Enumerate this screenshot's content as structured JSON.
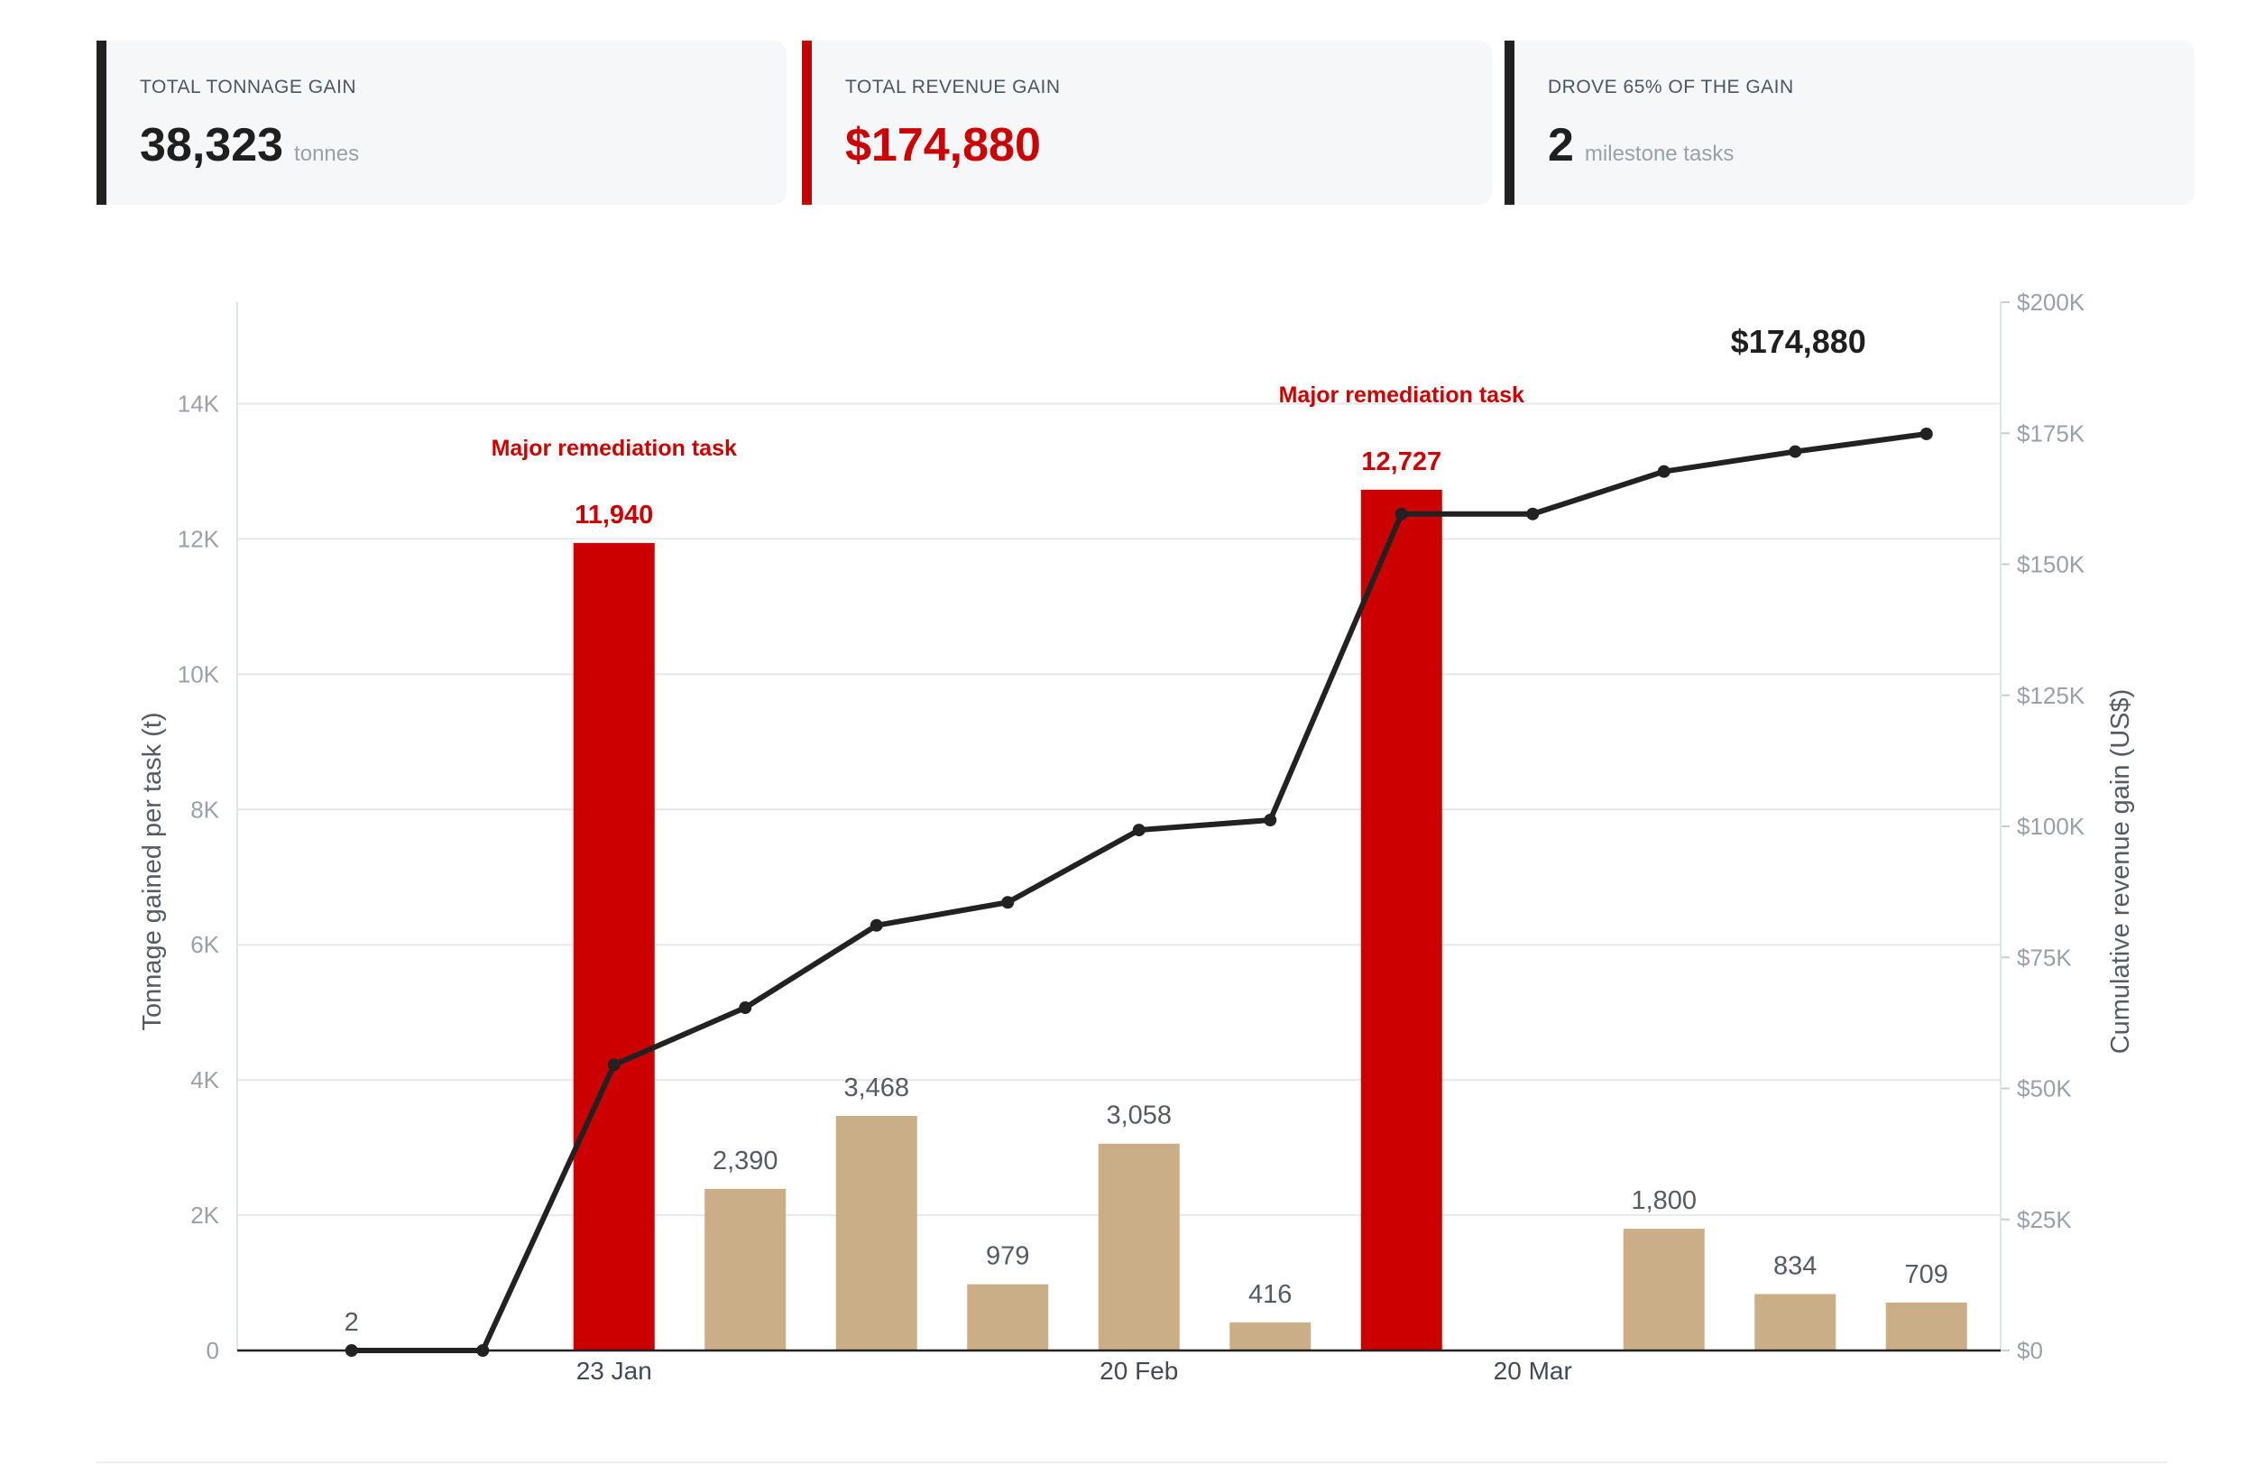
{
  "kpis": [
    {
      "label": "TOTAL TONNAGE GAIN",
      "value": "38,323",
      "unit": "tonnes",
      "accent": "#222222"
    },
    {
      "label": "TOTAL REVENUE GAIN",
      "value": "$174,880",
      "unit": "",
      "accent": "#cc0000"
    },
    {
      "label": "DROVE 65% OF THE GAIN",
      "value": "2",
      "unit": "milestone tasks",
      "accent": "#222222"
    }
  ],
  "chart_data": {
    "type": "bar",
    "ylabel": "Tonnage gained per task (t)",
    "y2label": "Cumulative revenue gain (US$)",
    "ylim": [
      0,
      15500
    ],
    "y_ticks": [
      0,
      2000,
      4000,
      6000,
      8000,
      10000,
      12000,
      14000
    ],
    "y_tick_labels": [
      "0",
      "2K",
      "4K",
      "6K",
      "8K",
      "10K",
      "12K",
      "14K"
    ],
    "y2lim": [
      0,
      200000
    ],
    "y2_ticks": [
      0,
      25000,
      50000,
      75000,
      100000,
      125000,
      150000,
      175000,
      200000
    ],
    "y2_tick_labels": [
      "$0",
      "$25K",
      "$50K",
      "$75K",
      "$100K",
      "$125K",
      "$150K",
      "$175K",
      "$200K"
    ],
    "x_tick_labels": [
      {
        "label": "23 Jan",
        "index": 2
      },
      {
        "label": "20 Feb",
        "index": 6
      },
      {
        "label": "20 Mar",
        "index": 9
      }
    ],
    "grid": "horizontal",
    "bar_colors": {
      "major": "#cc0000",
      "normal": "#c9ae87"
    },
    "line_color": "#222222",
    "tasks": [
      {
        "tonnage": 2,
        "label": "2",
        "major": false,
        "cumulative_revenue": 0
      },
      {
        "tonnage": 0,
        "label": "",
        "major": false,
        "cumulative_revenue": 0
      },
      {
        "tonnage": 11940,
        "label": "11,940",
        "major": true,
        "cumulative_revenue": 54500
      },
      {
        "tonnage": 2390,
        "label": "2,390",
        "major": false,
        "cumulative_revenue": 65400
      },
      {
        "tonnage": 3468,
        "label": "3,468",
        "major": false,
        "cumulative_revenue": 81100
      },
      {
        "tonnage": 979,
        "label": "979",
        "major": false,
        "cumulative_revenue": 85500
      },
      {
        "tonnage": 3058,
        "label": "3,058",
        "major": false,
        "cumulative_revenue": 99300
      },
      {
        "tonnage": 416,
        "label": "416",
        "major": false,
        "cumulative_revenue": 101200
      },
      {
        "tonnage": 12727,
        "label": "12,727",
        "major": true,
        "cumulative_revenue": 159600
      },
      {
        "tonnage": 0,
        "label": "",
        "major": false,
        "cumulative_revenue": 159600
      },
      {
        "tonnage": 1800,
        "label": "1,800",
        "major": false,
        "cumulative_revenue": 167700
      },
      {
        "tonnage": 834,
        "label": "834",
        "major": false,
        "cumulative_revenue": 171500
      },
      {
        "tonnage": 709,
        "label": "709",
        "major": false,
        "cumulative_revenue": 174880
      }
    ],
    "annotations": [
      {
        "text": "Major remediation task",
        "task_index": 2
      },
      {
        "text": "Major remediation task",
        "task_index": 8
      }
    ],
    "end_label": "$174,880"
  }
}
